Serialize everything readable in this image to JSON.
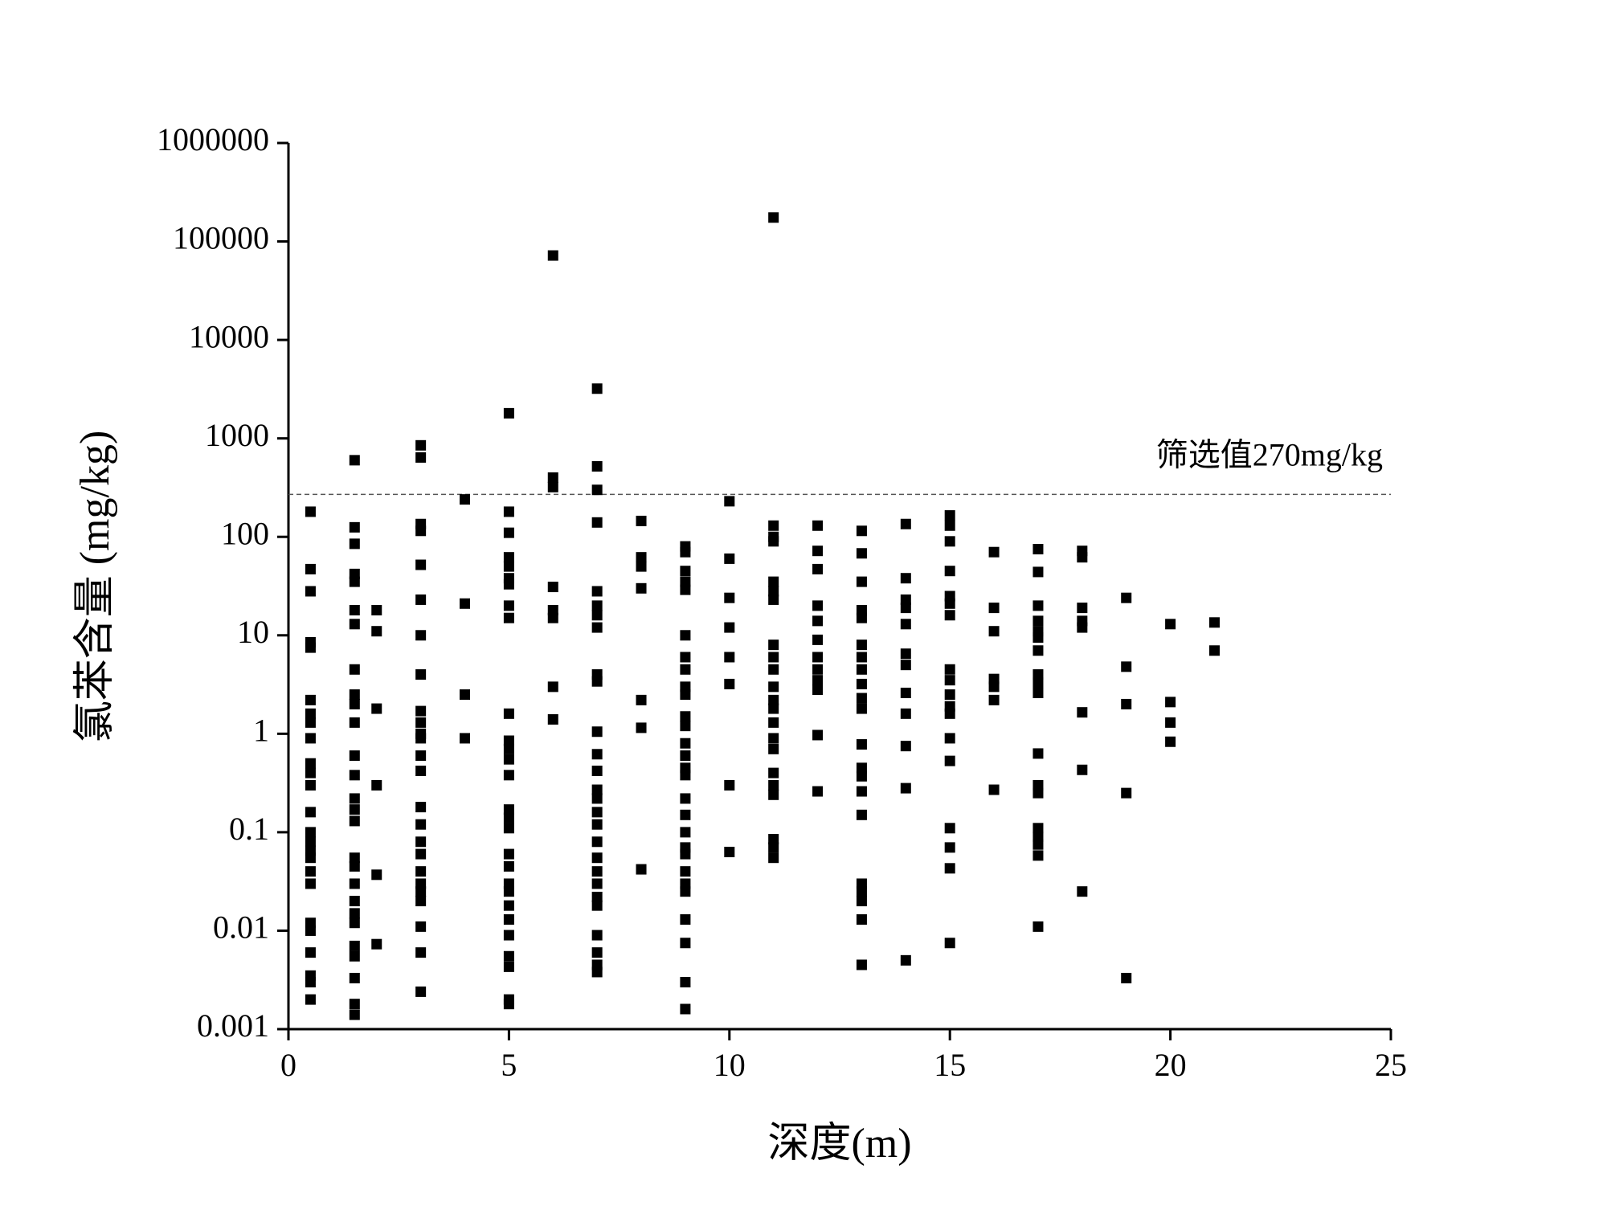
{
  "chart_data": {
    "type": "scatter",
    "y_label": "氯苯含量 (mg/kg)",
    "x_label": "深度(m)",
    "annotation": "筛选值270mg/kg",
    "threshold": 270,
    "color": "#000000",
    "log_y": true,
    "xlim": [
      0,
      25
    ],
    "xticks": [
      0,
      5,
      10,
      15,
      20,
      25
    ],
    "ylim": [
      0.001,
      1000000
    ],
    "yticks": [
      0.001,
      0.01,
      0.1,
      1,
      10,
      100,
      1000,
      10000,
      100000,
      1000000
    ],
    "x": [
      0.5,
      0.5,
      0.5,
      0.5,
      0.5,
      0.5,
      0.5,
      0.5,
      0.5,
      0.5,
      0.5,
      0.5,
      0.5,
      0.5,
      0.5,
      0.5,
      0.5,
      0.5,
      0.5,
      0.5,
      0.5,
      0.5,
      0.5,
      0.5,
      0.5,
      1.5,
      1.5,
      1.5,
      1.5,
      1.5,
      1.5,
      1.5,
      1.5,
      1.5,
      1.5,
      1.5,
      1.5,
      1.5,
      1.5,
      1.5,
      1.5,
      1.5,
      1.5,
      1.5,
      1.5,
      1.5,
      1.5,
      1.5,
      1.5,
      1.5,
      1.5,
      1.5,
      2,
      2,
      2,
      2,
      2,
      2,
      3,
      3,
      3,
      3,
      3,
      3,
      3,
      3,
      3,
      3,
      3,
      3,
      3,
      3,
      3,
      3,
      3,
      3,
      3,
      3,
      3,
      3,
      3,
      3,
      3,
      4,
      4,
      4,
      4,
      5,
      5,
      5,
      5,
      5,
      5,
      5,
      5,
      5,
      5,
      5,
      5,
      5,
      5,
      5,
      5,
      5,
      5,
      5,
      5,
      5,
      5,
      5,
      5,
      5,
      5,
      5,
      5,
      6,
      6,
      6,
      6,
      6,
      6,
      6,
      6,
      7,
      7,
      7,
      7,
      7,
      7,
      7,
      7,
      7,
      7,
      7,
      7,
      7,
      7,
      7,
      7,
      7,
      7,
      7,
      7,
      7,
      7,
      7,
      7,
      7,
      7,
      7,
      8,
      8,
      8,
      8,
      8,
      8,
      8,
      9,
      9,
      9,
      9,
      9,
      9,
      9,
      9,
      9,
      9,
      9,
      9,
      9,
      9,
      9,
      9,
      9,
      9,
      9,
      9,
      9,
      9,
      9,
      9,
      9,
      9,
      9,
      9,
      10,
      10,
      10,
      10,
      10,
      10,
      10,
      10,
      11,
      11,
      11,
      11,
      11,
      11,
      11,
      11,
      11,
      11,
      11,
      11,
      11,
      11,
      11,
      11,
      11,
      11,
      11,
      11,
      11,
      11,
      12,
      12,
      12,
      12,
      12,
      12,
      12,
      12,
      12,
      12,
      12,
      12,
      13,
      13,
      13,
      13,
      13,
      13,
      13,
      13,
      13,
      13,
      13,
      13,
      13,
      13,
      13,
      13,
      13,
      13,
      13,
      13,
      13,
      14,
      14,
      14,
      14,
      14,
      14,
      14,
      14,
      14,
      14,
      14,
      14,
      15,
      15,
      15,
      15,
      15,
      15,
      15,
      15,
      15,
      15,
      15,
      15,
      15,
      15,
      15,
      15,
      15,
      15,
      16,
      16,
      16,
      16,
      16,
      16,
      16,
      17,
      17,
      17,
      17,
      17,
      17,
      17,
      17,
      17,
      17,
      17,
      17,
      17,
      17,
      17,
      17,
      17,
      17,
      18,
      18,
      18,
      18,
      18,
      18,
      18,
      18,
      19,
      19,
      19,
      19,
      19,
      20,
      20,
      20,
      20,
      21,
      21
    ],
    "values": [
      180,
      47,
      28,
      8.5,
      7.5,
      2.2,
      1.6,
      1.3,
      0.9,
      0.5,
      0.4,
      0.3,
      0.16,
      0.1,
      0.08,
      0.065,
      0.055,
      0.04,
      0.03,
      0.012,
      0.01,
      0.006,
      0.0035,
      0.003,
      0.002,
      600,
      125,
      85,
      42,
      35,
      18,
      13,
      4.5,
      2.5,
      2,
      1.3,
      0.6,
      0.38,
      0.22,
      0.17,
      0.13,
      0.055,
      0.045,
      0.03,
      0.02,
      0.015,
      0.012,
      0.007,
      0.0055,
      0.0033,
      0.0018,
      0.0014,
      18,
      11,
      1.8,
      0.3,
      0.037,
      0.0073,
      850,
      640,
      135,
      115,
      52,
      23,
      10,
      4,
      1.7,
      1.3,
      1,
      0.9,
      0.6,
      0.42,
      0.18,
      0.12,
      0.08,
      0.06,
      0.04,
      0.03,
      0.025,
      0.02,
      0.011,
      0.006,
      0.0024,
      240,
      21,
      2.5,
      0.9,
      1800,
      180,
      110,
      62,
      50,
      38,
      33,
      20,
      15,
      1.6,
      0.85,
      0.7,
      0.55,
      0.38,
      0.17,
      0.14,
      0.11,
      0.06,
      0.045,
      0.03,
      0.025,
      0.018,
      0.013,
      0.009,
      0.0055,
      0.0043,
      0.002,
      0.0018,
      72000,
      400,
      320,
      31,
      18,
      15,
      3,
      1.4,
      3200,
      520,
      300,
      140,
      28,
      20,
      16,
      12,
      4,
      3.4,
      1.05,
      0.62,
      0.42,
      0.27,
      0.22,
      0.16,
      0.12,
      0.08,
      0.055,
      0.04,
      0.03,
      0.022,
      0.018,
      0.009,
      0.006,
      0.0045,
      0.0038,
      145,
      62,
      50,
      30,
      2.2,
      1.15,
      0.042,
      80,
      70,
      45,
      35,
      29,
      10,
      6,
      4.5,
      3,
      2.5,
      1.5,
      1.2,
      0.8,
      0.6,
      0.45,
      0.38,
      0.22,
      0.15,
      0.1,
      0.07,
      0.06,
      0.04,
      0.03,
      0.025,
      0.013,
      0.0075,
      0.003,
      0.0016,
      230,
      60,
      24,
      12,
      6,
      3.2,
      0.3,
      0.063,
      175000,
      130,
      100,
      90,
      35,
      28,
      23,
      8,
      6,
      4.5,
      3,
      2.2,
      1.8,
      1.3,
      0.9,
      0.7,
      0.4,
      0.3,
      0.24,
      0.085,
      0.07,
      0.055,
      130,
      72,
      47,
      20,
      14,
      9,
      6,
      4.5,
      3.5,
      2.8,
      0.97,
      0.26,
      115,
      68,
      35,
      18,
      15,
      8,
      6,
      4.5,
      3.2,
      2.3,
      1.8,
      0.78,
      0.45,
      0.37,
      0.26,
      0.15,
      0.03,
      0.025,
      0.02,
      0.013,
      0.0045,
      135,
      38,
      23,
      19,
      13,
      6.5,
      5,
      2.6,
      1.6,
      0.75,
      0.28,
      0.005,
      165,
      130,
      90,
      45,
      25,
      21,
      16,
      4.5,
      3.5,
      2.5,
      1.9,
      1.6,
      0.9,
      0.53,
      0.11,
      0.07,
      0.043,
      0.0075,
      70,
      19,
      11,
      3.6,
      3,
      2.2,
      0.27,
      75,
      44,
      20,
      14,
      11,
      9.5,
      7,
      4,
      3.3,
      2.6,
      0.63,
      0.3,
      0.25,
      0.11,
      0.09,
      0.075,
      0.058,
      0.011,
      72,
      62,
      19,
      14,
      12,
      1.65,
      0.43,
      0.025,
      24,
      4.8,
      2,
      0.25,
      0.0033,
      13,
      2.1,
      1.3,
      0.83,
      13.5,
      7
    ]
  }
}
